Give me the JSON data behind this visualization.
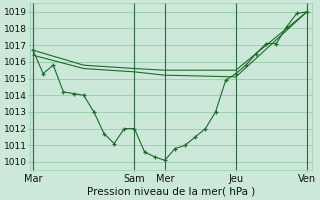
{
  "title": "",
  "xlabel": "Pression niveau de la mer( hPa )",
  "ylim": [
    1009.5,
    1019.5
  ],
  "yticks": [
    1010,
    1011,
    1012,
    1013,
    1014,
    1015,
    1016,
    1017,
    1018,
    1019
  ],
  "bg_color": "#cce8d8",
  "grid_color": "#99ccaa",
  "line_color": "#1a6b2a",
  "marker_color": "#1a6b2a",
  "vline_color": "#336644",
  "day_labels": [
    "Mar",
    "Sam",
    "Mer",
    "Jeu",
    "Ven"
  ],
  "day_positions": [
    0,
    10,
    13,
    20,
    27
  ],
  "xlim": [
    -0.3,
    27.5
  ],
  "series1_x": [
    0,
    1,
    2,
    3,
    4,
    5,
    6,
    7,
    8,
    9,
    10,
    11,
    12,
    13,
    14,
    15,
    16,
    17,
    18,
    19,
    20,
    21,
    22,
    23,
    24,
    25,
    26,
    27
  ],
  "series1_y": [
    1016.7,
    1015.3,
    1015.8,
    1014.2,
    1014.1,
    1014.0,
    1013.0,
    1011.7,
    1011.1,
    1012.0,
    1012.0,
    1010.6,
    1010.3,
    1010.1,
    1010.8,
    1011.0,
    1011.5,
    1012.0,
    1013.0,
    1014.9,
    1015.3,
    1015.8,
    1016.5,
    1017.1,
    1017.1,
    1018.1,
    1018.9,
    1019.0
  ],
  "series2_x": [
    0,
    5,
    10,
    13,
    20,
    27
  ],
  "series2_y": [
    1016.7,
    1015.8,
    1015.6,
    1015.5,
    1015.5,
    1019.0
  ],
  "series3_x": [
    0,
    5,
    10,
    13,
    20,
    27
  ],
  "series3_y": [
    1016.4,
    1015.6,
    1015.4,
    1015.2,
    1015.1,
    1019.0
  ],
  "fontsize_xlabel": 7.5,
  "fontsize_ytick": 6.5,
  "fontsize_xtick": 7.0
}
